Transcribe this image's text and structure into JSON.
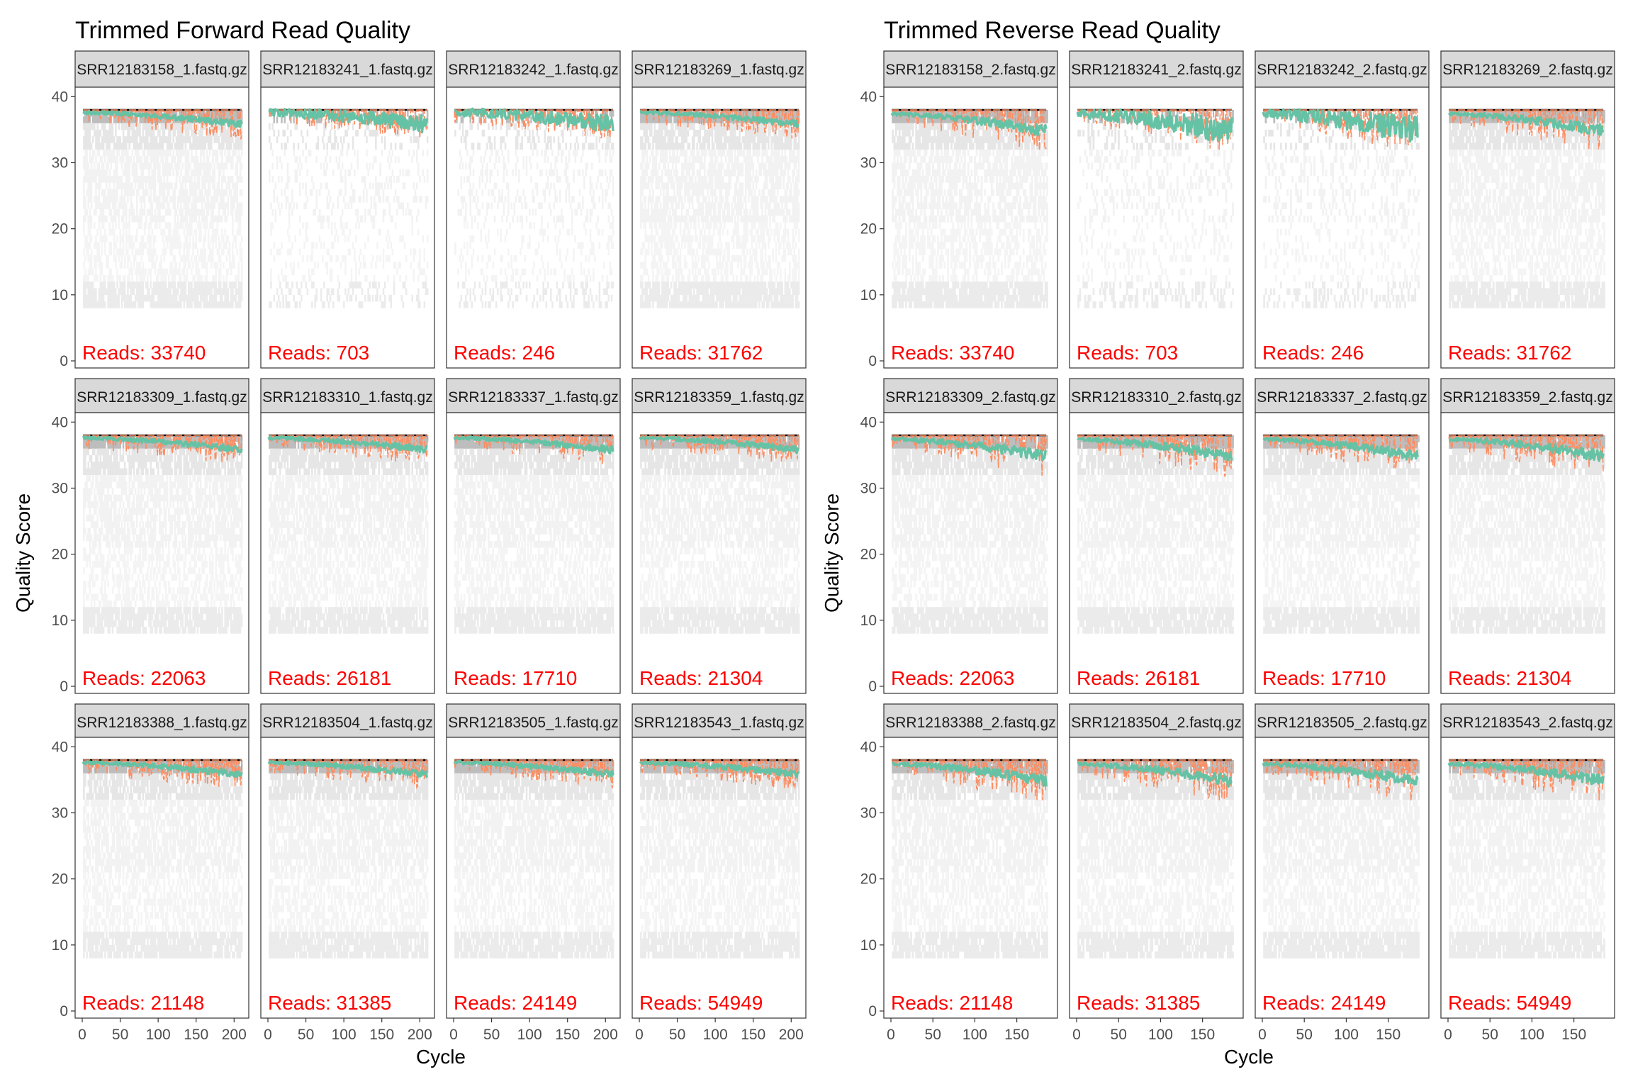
{
  "chart_data": [
    {
      "type": "heatmap",
      "title": "Trimmed Forward Read Quality",
      "xlabel": "Cycle",
      "ylabel": "Quality Score",
      "xlim": [
        0,
        210
      ],
      "ylim": [
        0,
        41
      ],
      "x_ticks": [
        0,
        50,
        100,
        150,
        200
      ],
      "y_ticks": [
        0,
        10,
        20,
        30,
        40
      ],
      "grid": false,
      "facets": [
        {
          "label": "SRR12183158_1.fastq.gz",
          "reads_label": "Reads:  33740",
          "reads": 33740
        },
        {
          "label": "SRR12183241_1.fastq.gz",
          "reads_label": "Reads:  703",
          "reads": 703
        },
        {
          "label": "SRR12183242_1.fastq.gz",
          "reads_label": "Reads:  246",
          "reads": 246
        },
        {
          "label": "SRR12183269_1.fastq.gz",
          "reads_label": "Reads:  31762",
          "reads": 31762
        },
        {
          "label": "SRR12183309_1.fastq.gz",
          "reads_label": "Reads:  22063",
          "reads": 22063
        },
        {
          "label": "SRR12183310_1.fastq.gz",
          "reads_label": "Reads:  26181",
          "reads": 26181
        },
        {
          "label": "SRR12183337_1.fastq.gz",
          "reads_label": "Reads:  17710",
          "reads": 17710
        },
        {
          "label": "SRR12183359_1.fastq.gz",
          "reads_label": "Reads:  21304",
          "reads": 21304
        },
        {
          "label": "SRR12183388_1.fastq.gz",
          "reads_label": "Reads:  21148",
          "reads": 21148
        },
        {
          "label": "SRR12183504_1.fastq.gz",
          "reads_label": "Reads:  31385",
          "reads": 31385
        },
        {
          "label": "SRR12183505_1.fastq.gz",
          "reads_label": "Reads:  24149",
          "reads": 24149
        },
        {
          "label": "SRR12183543_1.fastq.gz",
          "reads_label": "Reads:  54949",
          "reads": 54949
        }
      ],
      "series_colors": {
        "mean": "#66C2A5",
        "quartiles": "#FC8D62",
        "median": "#000000"
      },
      "cycles": 210,
      "mean_start": 37.6,
      "mean_end": 35.8
    },
    {
      "type": "heatmap",
      "title": "Trimmed Reverse Read Quality",
      "xlabel": "Cycle",
      "ylabel": "Quality Score",
      "xlim": [
        0,
        190
      ],
      "ylim": [
        0,
        41
      ],
      "x_ticks": [
        0,
        50,
        100,
        150
      ],
      "y_ticks": [
        0,
        10,
        20,
        30,
        40
      ],
      "grid": false,
      "facets": [
        {
          "label": "SRR12183158_2.fastq.gz",
          "reads_label": "Reads:  33740",
          "reads": 33740
        },
        {
          "label": "SRR12183241_2.fastq.gz",
          "reads_label": "Reads:  703",
          "reads": 703
        },
        {
          "label": "SRR12183242_2.fastq.gz",
          "reads_label": "Reads:  246",
          "reads": 246
        },
        {
          "label": "SRR12183269_2.fastq.gz",
          "reads_label": "Reads:  31762",
          "reads": 31762
        },
        {
          "label": "SRR12183309_2.fastq.gz",
          "reads_label": "Reads:  22063",
          "reads": 22063
        },
        {
          "label": "SRR12183310_2.fastq.gz",
          "reads_label": "Reads:  26181",
          "reads": 26181
        },
        {
          "label": "SRR12183337_2.fastq.gz",
          "reads_label": "Reads:  17710",
          "reads": 17710
        },
        {
          "label": "SRR12183359_2.fastq.gz",
          "reads_label": "Reads:  21304",
          "reads": 21304
        },
        {
          "label": "SRR12183388_2.fastq.gz",
          "reads_label": "Reads:  21148",
          "reads": 21148
        },
        {
          "label": "SRR12183504_2.fastq.gz",
          "reads_label": "Reads:  31385",
          "reads": 31385
        },
        {
          "label": "SRR12183505_2.fastq.gz",
          "reads_label": "Reads:  24149",
          "reads": 24149
        },
        {
          "label": "SRR12183543_2.fastq.gz",
          "reads_label": "Reads:  54949",
          "reads": 54949
        }
      ],
      "series_colors": {
        "mean": "#66C2A5",
        "quartiles": "#FC8D62",
        "median": "#000000"
      },
      "cycles": 185,
      "mean_start": 37.4,
      "mean_end": 34.8
    }
  ]
}
